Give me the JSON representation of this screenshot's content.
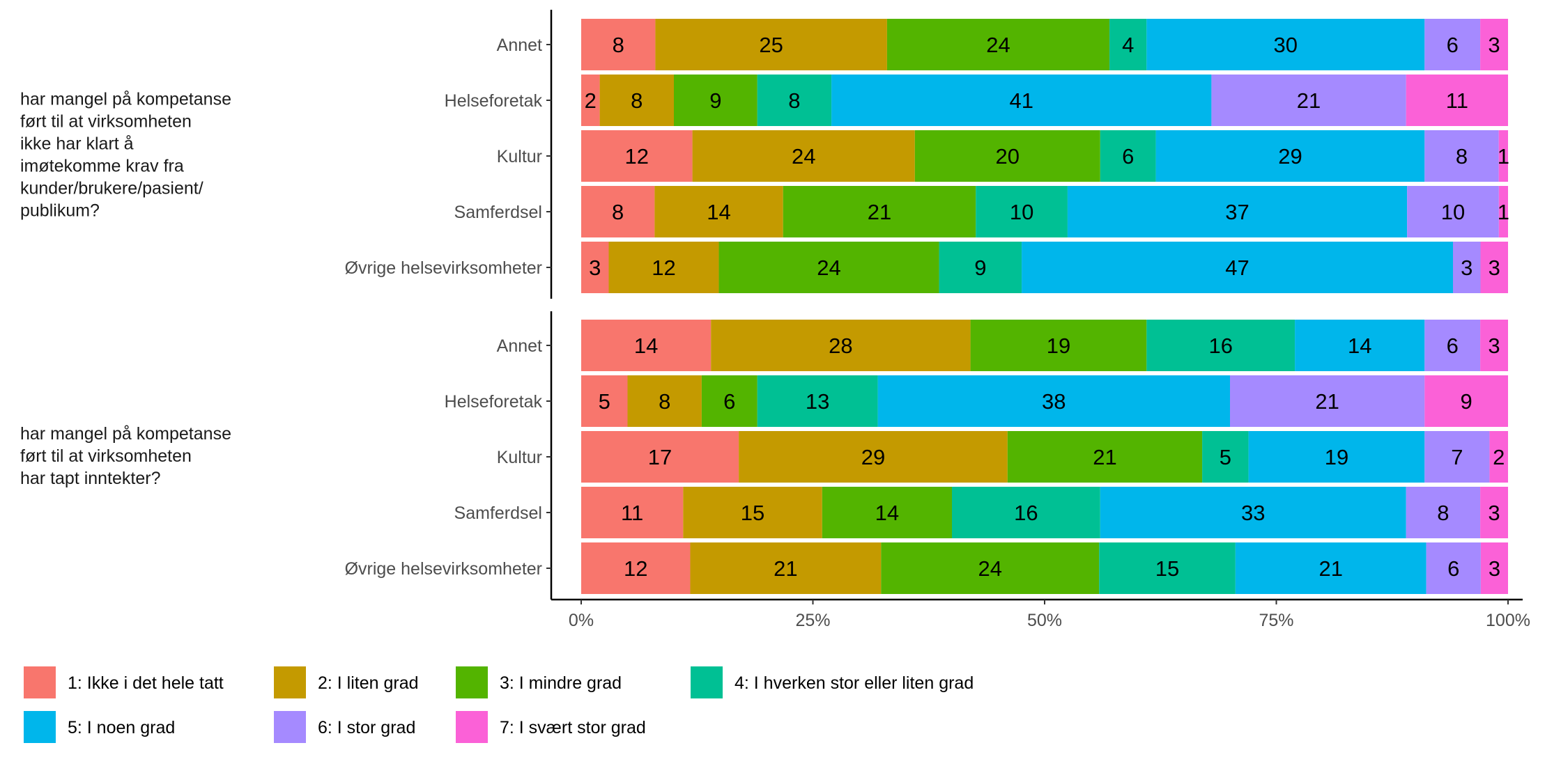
{
  "chart_data": {
    "type": "bar",
    "orientation": "horizontal-stacked-percent",
    "categories": [
      "Annet",
      "Helseforetak",
      "Kultur",
      "Samferdsel",
      "Øvrige helsevirksomheter"
    ],
    "legend": [
      {
        "name": "1: Ikke i det hele tatt",
        "color": "#F8766D"
      },
      {
        "name": "2: I liten grad",
        "color": "#C49A00"
      },
      {
        "name": "3: I mindre grad",
        "color": "#53B400"
      },
      {
        "name": "4: I hverken stor eller liten grad",
        "color": "#00C094"
      },
      {
        "name": "5: I noen grad",
        "color": "#00B6EB"
      },
      {
        "name": "6: I stor grad",
        "color": "#A58AFF"
      },
      {
        "name": "7: I svært stor grad",
        "color": "#FB61D7"
      }
    ],
    "legend_position": "bottom",
    "x_ticks": [
      "0%",
      "25%",
      "50%",
      "75%",
      "100%"
    ],
    "xlim": [
      0,
      100
    ],
    "facets": [
      {
        "label": [
          "har mangel på kompetanse",
          "ført til at virksomheten",
          "ikke har klart å",
          "imøtekomme krav fra",
          "kunder/brukere/pasient/",
          "publikum?"
        ],
        "rows": [
          {
            "category": "Annet",
            "values": [
              8,
              25,
              24,
              4,
              30,
              6,
              3
            ]
          },
          {
            "category": "Helseforetak",
            "values": [
              2,
              8,
              9,
              8,
              41,
              21,
              11
            ]
          },
          {
            "category": "Kultur",
            "values": [
              12,
              24,
              20,
              6,
              29,
              8,
              1
            ]
          },
          {
            "category": "Samferdsel",
            "values": [
              8,
              14,
              21,
              10,
              37,
              10,
              1
            ]
          },
          {
            "category": "Øvrige helsevirksomheter",
            "values": [
              3,
              12,
              24,
              9,
              47,
              3,
              3
            ]
          }
        ]
      },
      {
        "label": [
          "har mangel på kompetanse",
          "ført til at virksomheten",
          "har tapt inntekter?"
        ],
        "rows": [
          {
            "category": "Annet",
            "values": [
              14,
              28,
              19,
              16,
              14,
              6,
              3
            ]
          },
          {
            "category": "Helseforetak",
            "values": [
              5,
              8,
              6,
              13,
              38,
              21,
              9
            ]
          },
          {
            "category": "Kultur",
            "values": [
              17,
              29,
              21,
              5,
              19,
              7,
              2
            ]
          },
          {
            "category": "Samferdsel",
            "values": [
              11,
              15,
              14,
              16,
              33,
              8,
              3
            ]
          },
          {
            "category": "Øvrige helsevirksomheter",
            "values": [
              12,
              21,
              24,
              15,
              21,
              6,
              3
            ]
          }
        ]
      }
    ]
  }
}
